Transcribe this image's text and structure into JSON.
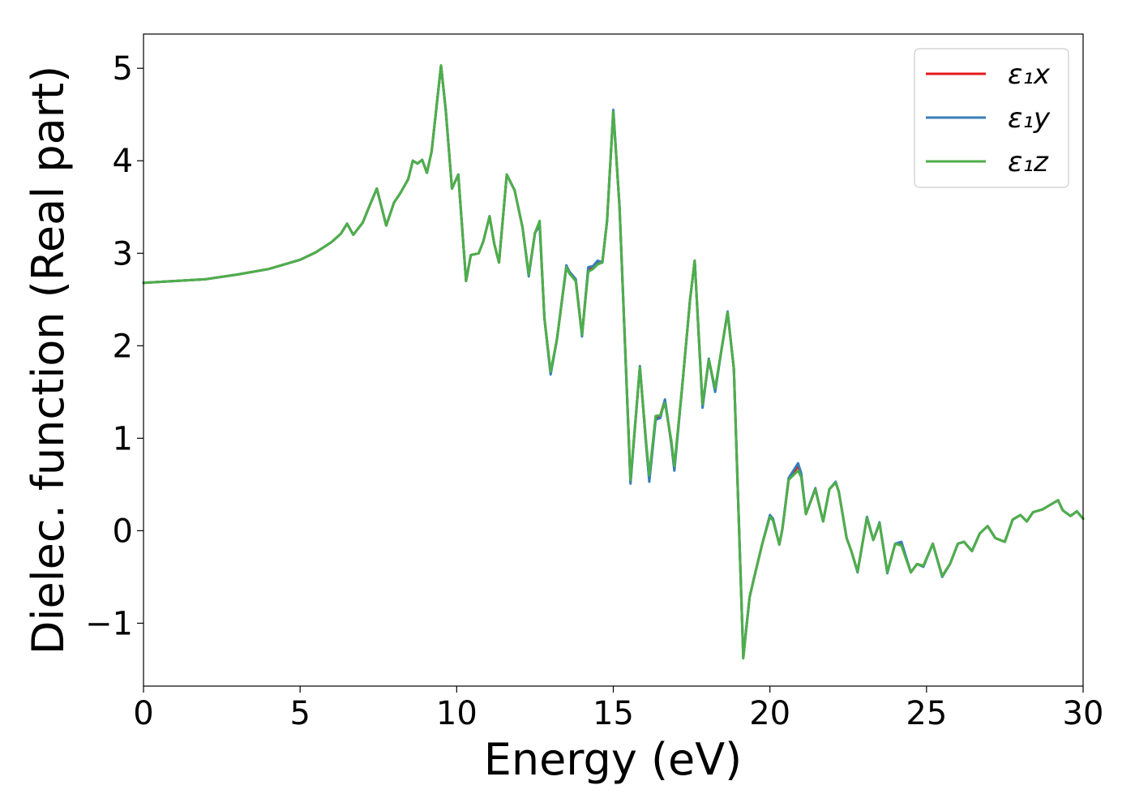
{
  "chart_data": {
    "type": "line",
    "xlabel": "Energy (eV)",
    "ylabel": "Dielec. function (Real part)",
    "xlim": [
      0,
      30
    ],
    "ylim": [
      -1.68,
      5.37
    ],
    "xticks": [
      0,
      5,
      10,
      15,
      20,
      25,
      30
    ],
    "yticks": [
      -1,
      0,
      1,
      2,
      3,
      4,
      5
    ],
    "xtick_labels": [
      "0",
      "5",
      "10",
      "15",
      "20",
      "25",
      "30"
    ],
    "ytick_labels": [
      "−1",
      "0",
      "1",
      "2",
      "3",
      "4",
      "5"
    ],
    "grid": false,
    "legend_position": "top-right",
    "series": [
      {
        "name": "ε₁x",
        "color": "#e41a1c",
        "x": [
          0,
          1,
          2,
          3,
          4,
          5,
          5.5,
          6,
          6.3,
          6.5,
          6.7,
          7,
          7.2,
          7.45,
          7.6,
          7.75,
          8,
          8.2,
          8.45,
          8.6,
          8.75,
          8.9,
          9.05,
          9.2,
          9.5,
          9.65,
          9.85,
          10.05,
          10.2,
          10.3,
          10.45,
          10.7,
          10.85,
          11.05,
          11.2,
          11.35,
          11.6,
          11.85,
          12.1,
          12.3,
          12.5,
          12.65,
          12.8,
          13.0,
          13.2,
          13.5,
          13.6,
          13.8,
          14.0,
          14.2,
          14.35,
          14.5,
          14.65,
          14.8,
          15.0,
          15.2,
          15.55,
          15.85,
          16.05,
          16.15,
          16.35,
          16.5,
          16.65,
          16.85,
          16.95,
          17.2,
          17.45,
          17.6,
          17.85,
          18.05,
          18.25,
          18.45,
          18.65,
          18.85,
          19.15,
          19.35,
          19.5,
          19.75,
          20.0,
          20.1,
          20.3,
          20.4,
          20.6,
          20.9,
          21.0,
          21.15,
          21.45,
          21.7,
          21.9,
          22.1,
          22.2,
          22.45,
          22.6,
          22.8,
          23.1,
          23.3,
          23.5,
          23.75,
          24.0,
          24.2,
          24.5,
          24.7,
          24.9,
          25.2,
          25.5,
          25.75,
          26.0,
          26.2,
          26.45,
          26.7,
          26.95,
          27.2,
          27.5,
          27.75,
          28.0,
          28.2,
          28.4,
          28.7,
          28.95,
          29.2,
          29.35,
          29.6,
          29.8,
          30.0
        ],
        "y": [
          2.68,
          2.7,
          2.72,
          2.77,
          2.83,
          2.93,
          3.01,
          3.12,
          3.21,
          3.32,
          3.2,
          3.33,
          3.5,
          3.7,
          3.5,
          3.3,
          3.55,
          3.65,
          3.8,
          4.0,
          3.97,
          4.01,
          3.87,
          4.1,
          5.03,
          4.55,
          3.7,
          3.85,
          3.15,
          2.7,
          2.98,
          3.0,
          3.13,
          3.4,
          3.1,
          2.9,
          3.85,
          3.68,
          3.28,
          2.77,
          3.22,
          3.3,
          2.3,
          1.7,
          2.07,
          2.85,
          2.8,
          2.72,
          2.12,
          2.83,
          2.85,
          2.9,
          2.9,
          3.35,
          4.54,
          3.5,
          0.53,
          1.77,
          0.92,
          0.56,
          1.22,
          1.25,
          1.41,
          0.95,
          0.68,
          1.56,
          2.5,
          2.92,
          1.35,
          1.85,
          1.52,
          1.95,
          2.36,
          1.75,
          -1.37,
          -0.72,
          -0.5,
          -0.15,
          0.16,
          0.12,
          -0.15,
          0.02,
          0.55,
          0.7,
          0.6,
          0.18,
          0.45,
          0.1,
          0.45,
          0.52,
          0.42,
          -0.08,
          -0.22,
          -0.44,
          0.14,
          -0.1,
          0.08,
          -0.45,
          -0.14,
          -0.15,
          -0.45,
          -0.36,
          -0.38,
          -0.14,
          -0.49,
          -0.36,
          -0.14,
          -0.12,
          -0.22,
          -0.03,
          0.05,
          -0.08,
          -0.12,
          0.12,
          0.17,
          0.1,
          0.2,
          0.23,
          0.28,
          0.33,
          0.22,
          0.16,
          0.21,
          0.13
        ]
      },
      {
        "name": "ε₁y",
        "color": "#377eb8",
        "x": [
          0,
          1,
          2,
          3,
          4,
          5,
          5.5,
          6,
          6.3,
          6.5,
          6.7,
          7,
          7.2,
          7.45,
          7.6,
          7.75,
          8,
          8.2,
          8.45,
          8.6,
          8.75,
          8.9,
          9.05,
          9.2,
          9.5,
          9.65,
          9.85,
          10.05,
          10.2,
          10.3,
          10.45,
          10.7,
          10.85,
          11.05,
          11.2,
          11.35,
          11.6,
          11.85,
          12.1,
          12.3,
          12.5,
          12.65,
          12.8,
          13.0,
          13.2,
          13.5,
          13.6,
          13.8,
          14.0,
          14.2,
          14.35,
          14.5,
          14.65,
          14.8,
          15.0,
          15.2,
          15.55,
          15.85,
          16.05,
          16.15,
          16.35,
          16.5,
          16.65,
          16.85,
          16.95,
          17.2,
          17.45,
          17.6,
          17.85,
          18.05,
          18.25,
          18.45,
          18.65,
          18.85,
          19.15,
          19.35,
          19.5,
          19.75,
          20.0,
          20.1,
          20.3,
          20.4,
          20.6,
          20.9,
          21.0,
          21.15,
          21.45,
          21.7,
          21.9,
          22.1,
          22.2,
          22.45,
          22.6,
          22.8,
          23.1,
          23.3,
          23.5,
          23.75,
          24.0,
          24.2,
          24.5,
          24.7,
          24.9,
          25.2,
          25.5,
          25.75,
          26.0,
          26.2,
          26.45,
          26.7,
          26.95,
          27.2,
          27.5,
          27.75,
          28.0,
          28.2,
          28.4,
          28.7,
          28.95,
          29.2,
          29.35,
          29.6,
          29.8,
          30.0
        ],
        "y": [
          2.68,
          2.7,
          2.72,
          2.77,
          2.83,
          2.93,
          3.01,
          3.12,
          3.21,
          3.32,
          3.2,
          3.33,
          3.5,
          3.7,
          3.5,
          3.3,
          3.55,
          3.65,
          3.8,
          4.0,
          3.97,
          4.01,
          3.87,
          4.1,
          5.03,
          4.55,
          3.7,
          3.85,
          3.15,
          2.7,
          2.98,
          3.0,
          3.13,
          3.4,
          3.1,
          2.9,
          3.85,
          3.68,
          3.28,
          2.75,
          3.22,
          3.3,
          2.3,
          1.69,
          2.07,
          2.87,
          2.8,
          2.72,
          2.1,
          2.85,
          2.86,
          2.92,
          2.9,
          3.35,
          4.55,
          3.5,
          0.51,
          1.78,
          0.92,
          0.53,
          1.2,
          1.22,
          1.42,
          0.95,
          0.65,
          1.56,
          2.5,
          2.92,
          1.33,
          1.86,
          1.5,
          1.95,
          2.37,
          1.75,
          -1.35,
          -0.72,
          -0.5,
          -0.15,
          0.17,
          0.13,
          -0.15,
          0.02,
          0.57,
          0.73,
          0.62,
          0.18,
          0.46,
          0.1,
          0.45,
          0.53,
          0.42,
          -0.08,
          -0.22,
          -0.45,
          0.15,
          -0.1,
          0.09,
          -0.46,
          -0.14,
          -0.12,
          -0.45,
          -0.36,
          -0.39,
          -0.14,
          -0.5,
          -0.36,
          -0.14,
          -0.12,
          -0.22,
          -0.03,
          0.05,
          -0.08,
          -0.12,
          0.12,
          0.17,
          0.1,
          0.2,
          0.23,
          0.28,
          0.33,
          0.22,
          0.16,
          0.21,
          0.13
        ]
      },
      {
        "name": "ε₁z",
        "color": "#4daf4a",
        "x": [
          0,
          1,
          2,
          3,
          4,
          5,
          5.5,
          6,
          6.3,
          6.5,
          6.7,
          7,
          7.2,
          7.45,
          7.6,
          7.75,
          8,
          8.2,
          8.45,
          8.6,
          8.75,
          8.9,
          9.05,
          9.2,
          9.5,
          9.65,
          9.85,
          10.05,
          10.2,
          10.3,
          10.45,
          10.7,
          10.85,
          11.05,
          11.2,
          11.35,
          11.6,
          11.85,
          12.1,
          12.3,
          12.5,
          12.65,
          12.8,
          13.0,
          13.2,
          13.5,
          13.6,
          13.8,
          14.0,
          14.2,
          14.35,
          14.5,
          14.65,
          14.8,
          15.0,
          15.2,
          15.55,
          15.85,
          16.05,
          16.15,
          16.35,
          16.5,
          16.65,
          16.85,
          16.95,
          17.2,
          17.45,
          17.6,
          17.85,
          18.05,
          18.25,
          18.45,
          18.65,
          18.85,
          19.15,
          19.35,
          19.5,
          19.75,
          20.0,
          20.1,
          20.3,
          20.4,
          20.6,
          20.9,
          21.0,
          21.15,
          21.45,
          21.7,
          21.9,
          22.1,
          22.2,
          22.45,
          22.6,
          22.8,
          23.1,
          23.3,
          23.5,
          23.75,
          24.0,
          24.2,
          24.5,
          24.7,
          24.9,
          25.2,
          25.5,
          25.75,
          26.0,
          26.2,
          26.45,
          26.7,
          26.95,
          27.2,
          27.5,
          27.75,
          28.0,
          28.2,
          28.4,
          28.7,
          28.95,
          29.2,
          29.35,
          29.6,
          29.8,
          30.0
        ],
        "y": [
          2.68,
          2.7,
          2.72,
          2.77,
          2.83,
          2.93,
          3.01,
          3.12,
          3.21,
          3.32,
          3.2,
          3.33,
          3.5,
          3.7,
          3.5,
          3.3,
          3.55,
          3.65,
          3.8,
          4.0,
          3.97,
          4.01,
          3.87,
          4.1,
          5.03,
          4.55,
          3.7,
          3.85,
          3.15,
          2.7,
          2.98,
          3.0,
          3.13,
          3.4,
          3.1,
          2.9,
          3.85,
          3.68,
          3.28,
          2.77,
          3.22,
          3.35,
          2.3,
          1.72,
          2.07,
          2.85,
          2.78,
          2.7,
          2.12,
          2.8,
          2.83,
          2.88,
          2.9,
          3.35,
          4.53,
          3.5,
          0.55,
          1.77,
          0.95,
          0.6,
          1.24,
          1.25,
          1.38,
          0.98,
          0.7,
          1.56,
          2.5,
          2.92,
          1.37,
          1.85,
          1.54,
          1.95,
          2.36,
          1.75,
          -1.38,
          -0.72,
          -0.5,
          -0.15,
          0.15,
          0.11,
          -0.15,
          0.02,
          0.55,
          0.65,
          0.58,
          0.18,
          0.45,
          0.1,
          0.45,
          0.52,
          0.42,
          -0.08,
          -0.22,
          -0.44,
          0.14,
          -0.1,
          0.08,
          -0.45,
          -0.14,
          -0.16,
          -0.45,
          -0.36,
          -0.38,
          -0.14,
          -0.49,
          -0.36,
          -0.14,
          -0.12,
          -0.22,
          -0.03,
          0.05,
          -0.08,
          -0.12,
          0.12,
          0.17,
          0.1,
          0.2,
          0.23,
          0.28,
          0.33,
          0.22,
          0.16,
          0.21,
          0.13
        ]
      }
    ]
  }
}
